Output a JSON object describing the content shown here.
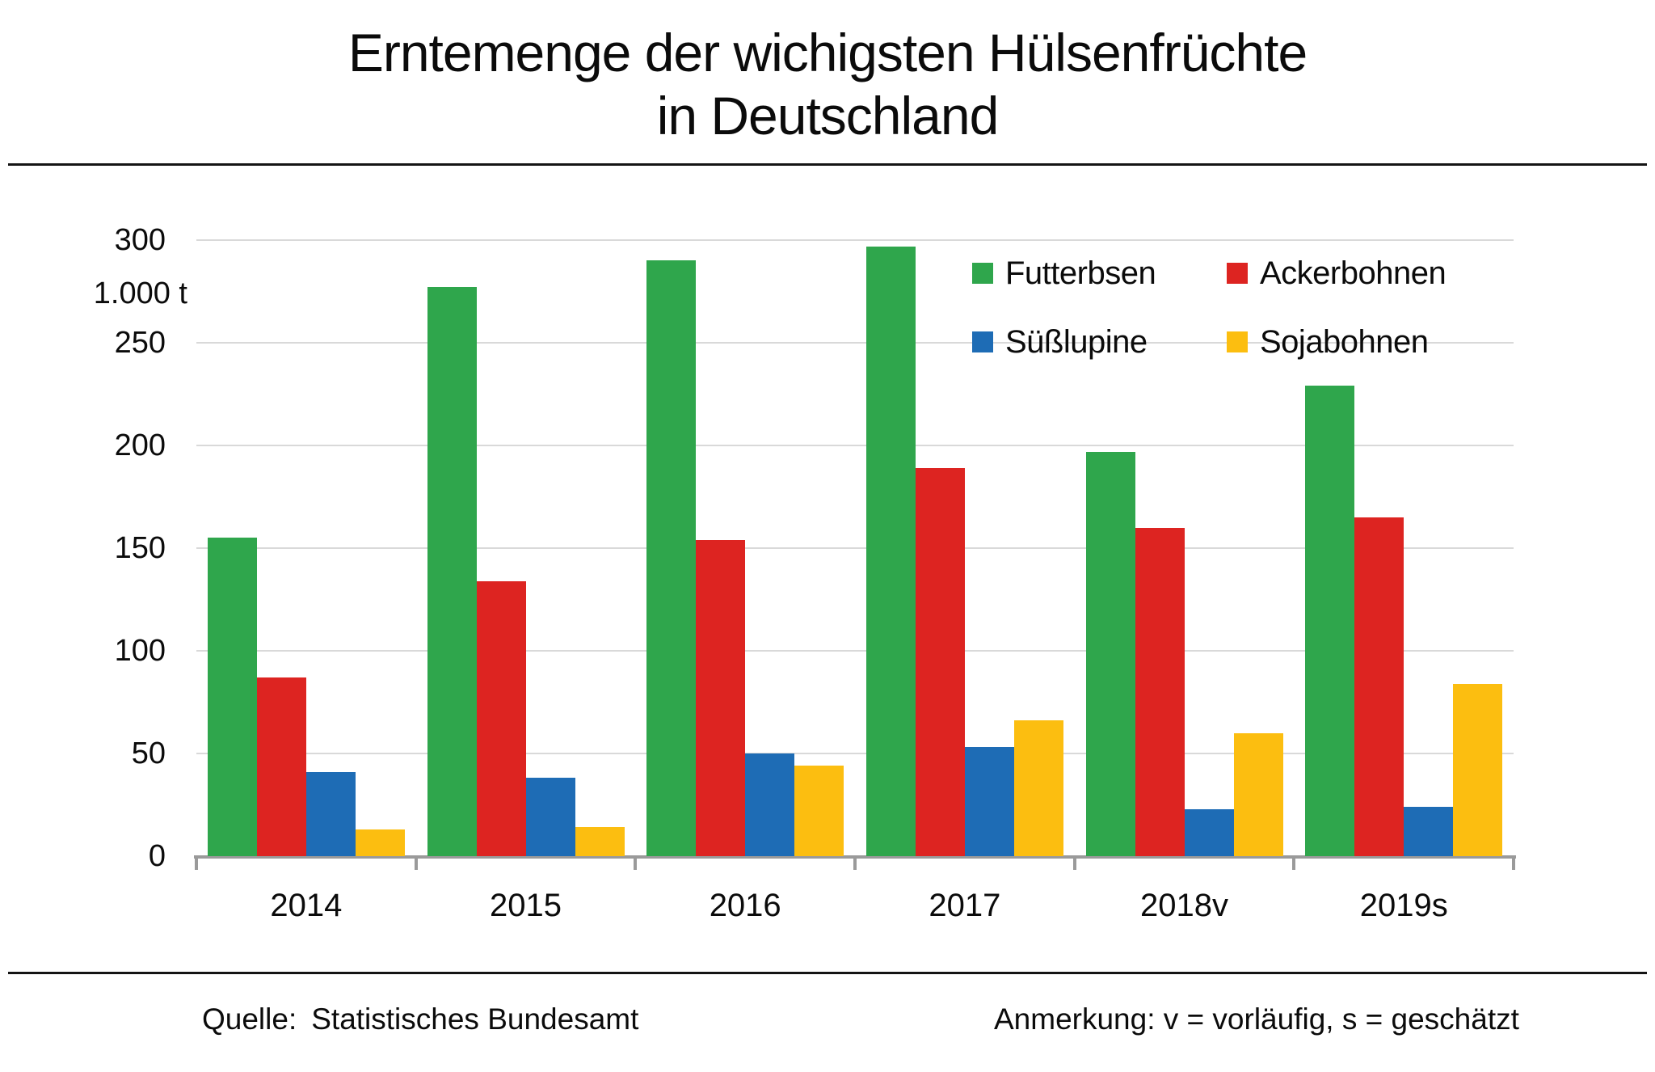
{
  "title": {
    "line1": "Erntemenge der wichigsten Hülsenfrüchte",
    "line2": "in Deutschland"
  },
  "y_axis": {
    "unit_label": "1.000  t",
    "ticks": [
      300,
      250,
      200,
      150,
      100,
      50,
      0
    ]
  },
  "footer": {
    "source_label": "Quelle:",
    "source_value": "Statistisches Bundesamt",
    "note": "Anmerkung: v = vorläufig, s = geschätzt"
  },
  "colors": {
    "gridline": "#d9d9d9",
    "axis": "#9a9a9a",
    "text": "#0b0b0b"
  },
  "chart_data": {
    "type": "bar",
    "title": "Erntemenge der wichigsten Hülsenfrüchte in Deutschland",
    "ylabel": "1.000 t",
    "ylim": [
      0,
      300
    ],
    "grid": true,
    "legend_position": "top-right",
    "categories": [
      "2014",
      "2015",
      "2016",
      "2017",
      "2018v",
      "2019s"
    ],
    "series": [
      {
        "name": "Futterbsen",
        "color": "#2fa64c",
        "values": [
          155,
          277,
          290,
          297,
          197,
          229
        ]
      },
      {
        "name": "Ackerbohnen",
        "color": "#dd2421",
        "values": [
          87,
          134,
          154,
          189,
          160,
          165
        ]
      },
      {
        "name": "Süßlupine",
        "color": "#1e6cb5",
        "values": [
          41,
          38,
          50,
          53,
          23,
          24
        ]
      },
      {
        "name": "Sojabohnen",
        "color": "#fcbe10",
        "values": [
          13,
          14,
          44,
          66,
          60,
          84
        ]
      }
    ]
  }
}
